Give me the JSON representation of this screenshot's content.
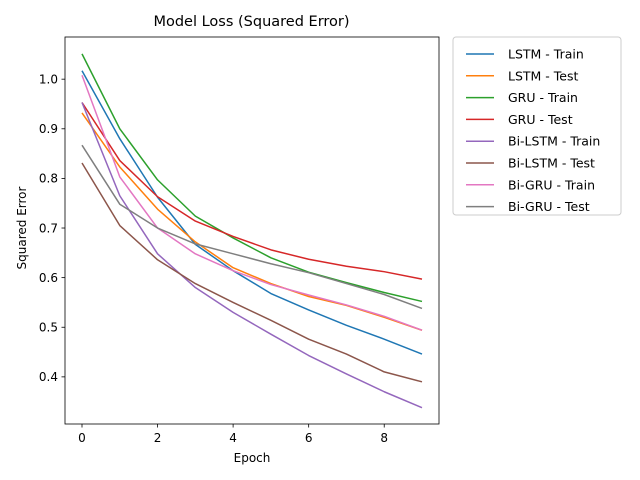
{
  "chart_data": {
    "type": "line",
    "title": "Model Loss (Squared Error)",
    "xlabel": "Epoch",
    "ylabel": "Squared Error",
    "xlim": [
      -0.45,
      9.45
    ],
    "ylim": [
      0.305,
      1.085
    ],
    "xticks": [
      0,
      2,
      4,
      6,
      8
    ],
    "yticks": [
      0.4,
      0.5,
      0.6,
      0.7,
      0.8,
      0.9,
      1.0
    ],
    "ytick_labels": [
      "0.4",
      "0.5",
      "0.6",
      "0.7",
      "0.8",
      "0.9",
      "1.0"
    ],
    "grid": false,
    "legend_position": "outside-right",
    "x": [
      0,
      1,
      2,
      3,
      4,
      5,
      6,
      7,
      8,
      9
    ],
    "series": [
      {
        "name": "LSTM - Train",
        "color": "#1f77b4",
        "values": [
          1.017,
          0.88,
          0.762,
          0.667,
          0.614,
          0.568,
          0.535,
          0.504,
          0.476,
          0.446
        ]
      },
      {
        "name": "LSTM - Test",
        "color": "#ff7f0e",
        "values": [
          0.932,
          0.823,
          0.738,
          0.672,
          0.62,
          0.588,
          0.562,
          0.544,
          0.52,
          0.494
        ]
      },
      {
        "name": "GRU - Train",
        "color": "#2ca02c",
        "values": [
          1.051,
          0.9,
          0.797,
          0.724,
          0.68,
          0.64,
          0.611,
          0.59,
          0.57,
          0.552
        ]
      },
      {
        "name": "GRU - Test",
        "color": "#d62728",
        "values": [
          0.953,
          0.836,
          0.763,
          0.714,
          0.683,
          0.656,
          0.637,
          0.623,
          0.612,
          0.597
        ]
      },
      {
        "name": "Bi-LSTM - Train",
        "color": "#9467bd",
        "values": [
          0.953,
          0.765,
          0.648,
          0.58,
          0.53,
          0.486,
          0.443,
          0.406,
          0.37,
          0.338
        ]
      },
      {
        "name": "Bi-LSTM - Test",
        "color": "#8c564b",
        "values": [
          0.831,
          0.705,
          0.636,
          0.588,
          0.55,
          0.514,
          0.476,
          0.446,
          0.41,
          0.39
        ]
      },
      {
        "name": "Bi-GRU - Train",
        "color": "#e377c2",
        "values": [
          1.008,
          0.803,
          0.7,
          0.648,
          0.614,
          0.586,
          0.565,
          0.545,
          0.522,
          0.494
        ]
      },
      {
        "name": "Bi-GRU - Test",
        "color": "#7f7f7f",
        "values": [
          0.867,
          0.748,
          0.7,
          0.668,
          0.648,
          0.628,
          0.61,
          0.588,
          0.566,
          0.538
        ]
      }
    ]
  }
}
